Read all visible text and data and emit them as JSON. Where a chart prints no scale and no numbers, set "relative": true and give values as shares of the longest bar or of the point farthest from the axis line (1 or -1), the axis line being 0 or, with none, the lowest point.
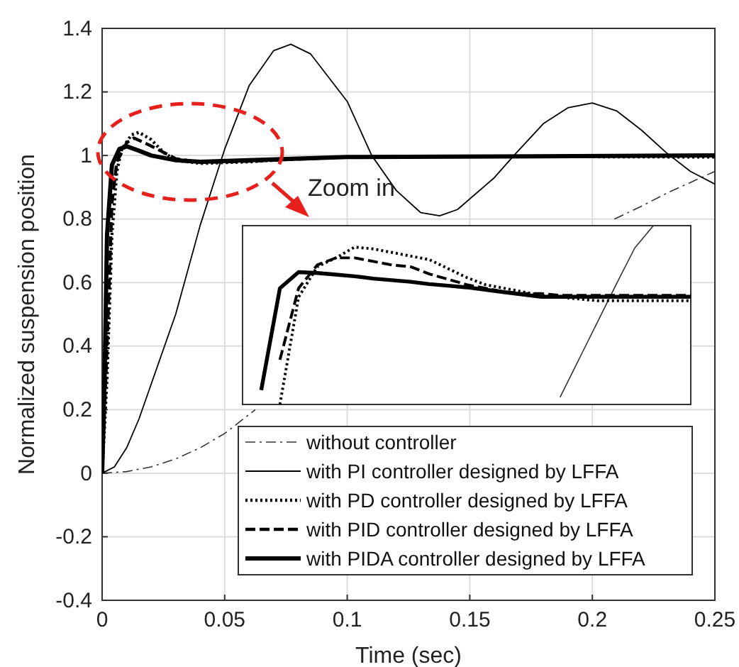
{
  "chart_data": [
    {
      "type": "line",
      "xlabel": "Time (sec)",
      "ylabel": "Normalized suspension position",
      "xlim": [
        0,
        0.25
      ],
      "ylim": [
        -0.4,
        1.4
      ],
      "xticks": [
        0,
        0.05,
        0.1,
        0.15,
        0.2,
        0.25
      ],
      "yticks": [
        -0.4,
        -0.2,
        0,
        0.2,
        0.4,
        0.6,
        0.8,
        1,
        1.2,
        1.4
      ],
      "grid": true,
      "legend": "bottom right",
      "annotations": [
        "Zoom in"
      ],
      "series": [
        {
          "name": "without controller",
          "color": "#333333",
          "line_style": "dashdot",
          "x": [
            0,
            0.01,
            0.02,
            0.03,
            0.04,
            0.05,
            0.0625,
            0.07,
            0.2,
            0.209,
            0.22,
            0.23,
            0.24,
            0.25
          ],
          "values": [
            0,
            0.005,
            0.02,
            0.045,
            0.08,
            0.125,
            0.2,
            null,
            null,
            0.8,
            0.84,
            0.88,
            0.915,
            0.95
          ]
        },
        {
          "name": "with PI controller designed by LFFA",
          "color": "#000000",
          "line_style": "solid",
          "x": [
            0,
            0.005,
            0.01,
            0.015,
            0.02,
            0.03,
            0.04,
            0.05,
            0.06,
            0.07,
            0.077,
            0.085,
            0.1,
            0.11,
            0.12,
            0.13,
            0.1377,
            0.145,
            0.16,
            0.168,
            0.18,
            0.19,
            0.2,
            0.21,
            0.22,
            0.23,
            0.24,
            0.25
          ],
          "values": [
            0,
            0.02,
            0.08,
            0.17,
            0.28,
            0.5,
            0.78,
            1.02,
            1.22,
            1.33,
            1.35,
            1.32,
            1.17,
            1.0,
            0.89,
            0.82,
            0.81,
            0.83,
            0.93,
            1.0,
            1.1,
            1.15,
            1.165,
            1.14,
            1.08,
            1.01,
            0.95,
            0.91
          ]
        },
        {
          "name": "with PD controller designed by LFFA",
          "color": "#000000",
          "line_style": "dotted",
          "x": [
            0,
            0.002,
            0.004,
            0.006,
            0.008,
            0.012,
            0.015,
            0.02,
            0.025,
            0.03,
            0.04,
            0.06,
            0.08,
            0.1,
            0.15,
            0.25
          ],
          "values": [
            0,
            0.3,
            0.75,
            0.95,
            1.02,
            1.065,
            1.073,
            1.05,
            1.01,
            0.985,
            0.975,
            0.98,
            0.99,
            0.995,
            0.997,
            0.995
          ]
        },
        {
          "name": "with PID controller designed by LFFA",
          "color": "#000000",
          "line_style": "dashed",
          "x": [
            0,
            0.002,
            0.004,
            0.006,
            0.01,
            0.013,
            0.02,
            0.03,
            0.04,
            0.06,
            0.1,
            0.25
          ],
          "values": [
            0,
            0.4,
            0.85,
            0.98,
            1.04,
            1.055,
            1.03,
            0.99,
            0.978,
            0.982,
            0.995,
            1.0
          ]
        },
        {
          "name": "with PIDA controller designed by LFFA",
          "color": "#000000",
          "line_style": "solid",
          "x": [
            0,
            0.001,
            0.002,
            0.004,
            0.007,
            0.01,
            0.015,
            0.02,
            0.03,
            0.04,
            0.06,
            0.1,
            0.25
          ],
          "values": [
            0,
            0.3,
            0.75,
            0.97,
            1.02,
            1.029,
            1.015,
            1.0,
            0.985,
            0.98,
            0.985,
            0.995,
            1.0
          ]
        }
      ]
    },
    {
      "type": "line",
      "relative": true,
      "categories": [
        null,
        null,
        null,
        null,
        null,
        null,
        null,
        null,
        null,
        null,
        null,
        null,
        null,
        null,
        null,
        null,
        null,
        null,
        null,
        null,
        null,
        null,
        null,
        null,
        null
      ],
      "series": [
        {
          "color": "#333333",
          "line_style": "solid",
          "values": [
            null,
            null,
            null,
            null,
            null,
            null,
            null,
            null,
            null,
            null,
            null,
            null,
            null,
            null,
            null,
            null,
            null,
            0.04,
            0.25,
            0.46,
            0.67,
            0.875,
            1,
            null,
            null
          ]
        },
        {
          "color": "#000000",
          "line_style": "dotted",
          "values": [
            null,
            null,
            0,
            0.6,
            0.77,
            0.82,
            0.88,
            0.87,
            0.85,
            0.83,
            0.81,
            0.76,
            0.71,
            0.67,
            0.65,
            0.63,
            0.61,
            0.6,
            0.59,
            0.58,
            0.58,
            0.58,
            0.58,
            0.58,
            0.58
          ]
        },
        {
          "color": "#000000",
          "line_style": "dashed",
          "values": [
            null,
            null,
            0.25,
            0.65,
            0.78,
            0.82,
            0.82,
            0.8,
            0.78,
            0.77,
            0.73,
            0.7,
            0.67,
            0.65,
            0.63,
            0.62,
            0.62,
            0.61,
            0.61,
            0.61,
            0.61,
            0.61,
            0.61,
            0.61,
            0.61
          ]
        },
        {
          "color": "#000000",
          "line_style": "solid",
          "values": [
            null,
            0.08,
            0.65,
            0.74,
            0.735,
            0.726,
            0.717,
            0.704,
            0.695,
            0.686,
            0.673,
            0.664,
            0.655,
            0.642,
            0.628,
            0.615,
            0.602,
            0.602,
            0.602,
            0.602,
            0.602,
            0.602,
            0.602,
            0.602,
            0.602
          ]
        }
      ]
    }
  ]
}
